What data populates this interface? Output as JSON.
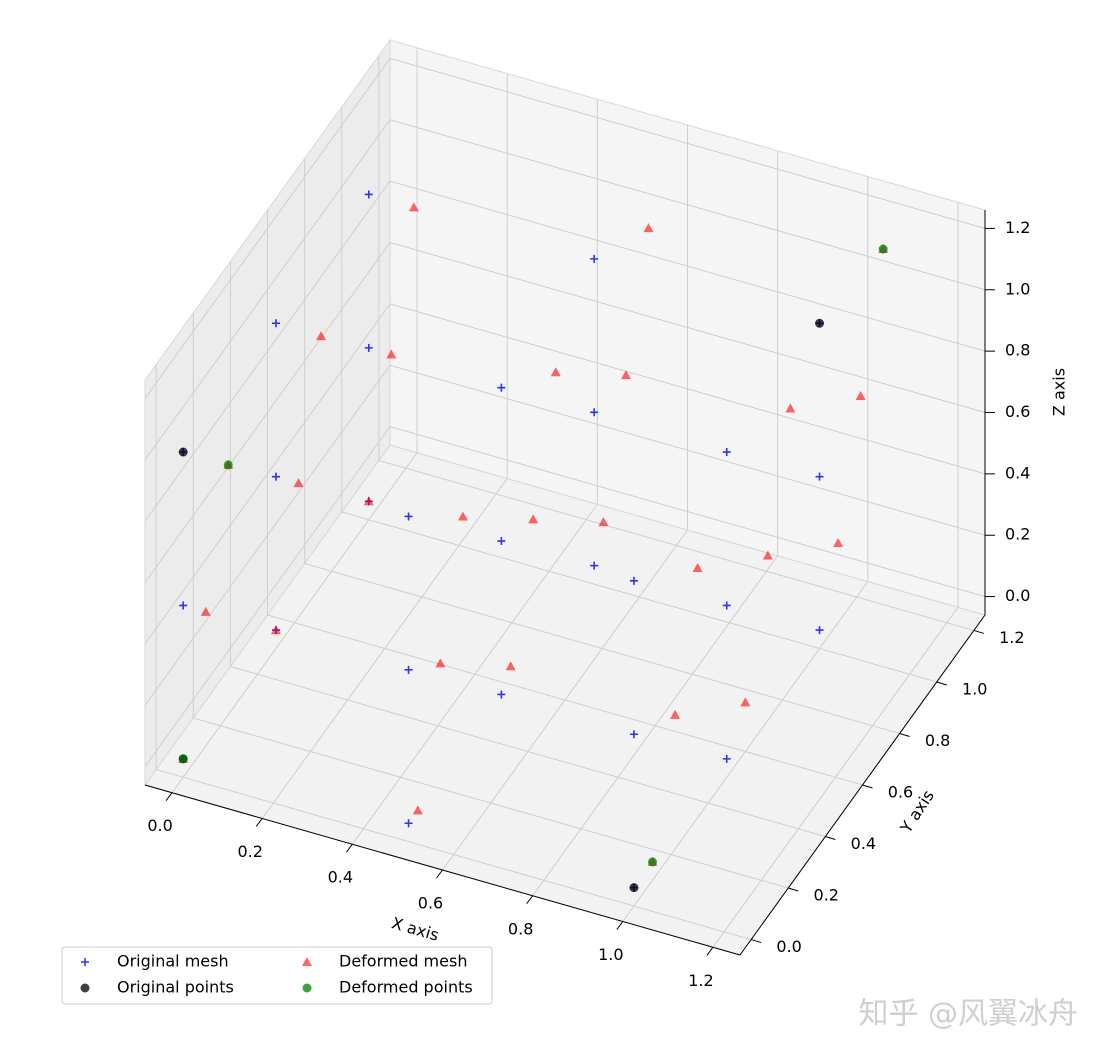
{
  "chart_data": {
    "type": "scatter3d",
    "xlabel": "X axis",
    "ylabel": "Y axis",
    "zlabel": "Z axis",
    "xlim": [
      -0.06,
      1.26
    ],
    "ylim": [
      -0.06,
      1.26
    ],
    "zlim": [
      -0.06,
      1.26
    ],
    "xticks": [
      {
        "value": 0,
        "label": "0.0"
      },
      0.2,
      0.4,
      0.6,
      0.8,
      {
        "value": 1,
        "label": "1.0"
      },
      1.2
    ],
    "yticks": [
      {
        "value": 0,
        "label": "0.0"
      },
      0.2,
      0.4,
      0.6,
      0.8,
      {
        "value": 1,
        "label": "1.0"
      },
      1.2
    ],
    "zticks": [
      {
        "value": 0,
        "label": "0.0"
      },
      0.2,
      0.4,
      0.6,
      0.8,
      {
        "value": 1,
        "label": "1.0"
      },
      1.2
    ],
    "grid": true,
    "legend": {
      "loc": "lower left",
      "ncol": 2
    },
    "series": [
      {
        "name": "Original mesh",
        "color": "#0000ff",
        "marker": "plus",
        "x": [
          0,
          0,
          0,
          0,
          0,
          0,
          0,
          0,
          0,
          0.5,
          0.5,
          0.5,
          0.5,
          0.5,
          0.5,
          0.5,
          0.5,
          0.5,
          1,
          1,
          1,
          1,
          1,
          1,
          1,
          1,
          1
        ],
        "y": [
          0,
          0,
          0,
          0.5,
          0.5,
          0.5,
          1,
          1,
          1,
          0,
          0,
          0,
          0.5,
          0.5,
          0.5,
          1,
          1,
          1,
          0,
          0,
          0,
          0.5,
          0.5,
          0.5,
          1,
          1,
          1
        ],
        "z": [
          0,
          0.5,
          1,
          0,
          0.5,
          1,
          0,
          0.5,
          1,
          0,
          0.5,
          1,
          0,
          0.5,
          1,
          0,
          0.5,
          1,
          0,
          0.5,
          1,
          0,
          0.5,
          1,
          0,
          0.5,
          1
        ]
      },
      {
        "name": "Deformed mesh",
        "color": "#ff0000",
        "marker": "triangle",
        "x": [
          0,
          0.05,
          0.1,
          0,
          0.05,
          0.1,
          0,
          0.05,
          0.1,
          0.5,
          0.55,
          0.6,
          0.5,
          0.55,
          0.6,
          0.5,
          0.55,
          0.6,
          1,
          1.05,
          1.1,
          1,
          1.05,
          1.1,
          1,
          1.05,
          1.1
        ],
        "y": [
          0,
          0,
          0,
          0.5,
          0.5,
          0.5,
          1,
          1,
          1,
          0.05,
          0.05,
          0.05,
          0.55,
          0.55,
          0.55,
          1.05,
          1.05,
          1.05,
          0.1,
          0.1,
          0.1,
          0.6,
          0.6,
          0.6,
          1.1,
          1.1,
          1.1
        ],
        "z": [
          0,
          0.5,
          1,
          0,
          0.5,
          1,
          0,
          0.5,
          1,
          0,
          0.5,
          1,
          0.05,
          0.55,
          1.05,
          0.1,
          0.6,
          1.1,
          0,
          0.5,
          1,
          0.1,
          0.6,
          1.1,
          0.2,
          0.7,
          1.2
        ]
      },
      {
        "name": "Original points",
        "color": "#000000",
        "marker": "circle",
        "x": [
          0,
          0,
          1,
          1
        ],
        "y": [
          0,
          0,
          1,
          0
        ],
        "z": [
          0,
          1,
          1,
          0
        ]
      },
      {
        "name": "Deformed points",
        "color": "#008000",
        "marker": "circle",
        "x": [
          0,
          0.1,
          1.1,
          1
        ],
        "y": [
          0,
          0,
          1.1,
          0.1
        ],
        "z": [
          0,
          1,
          1.2,
          0
        ]
      }
    ]
  },
  "watermark": "知乎 @风翼冰舟"
}
